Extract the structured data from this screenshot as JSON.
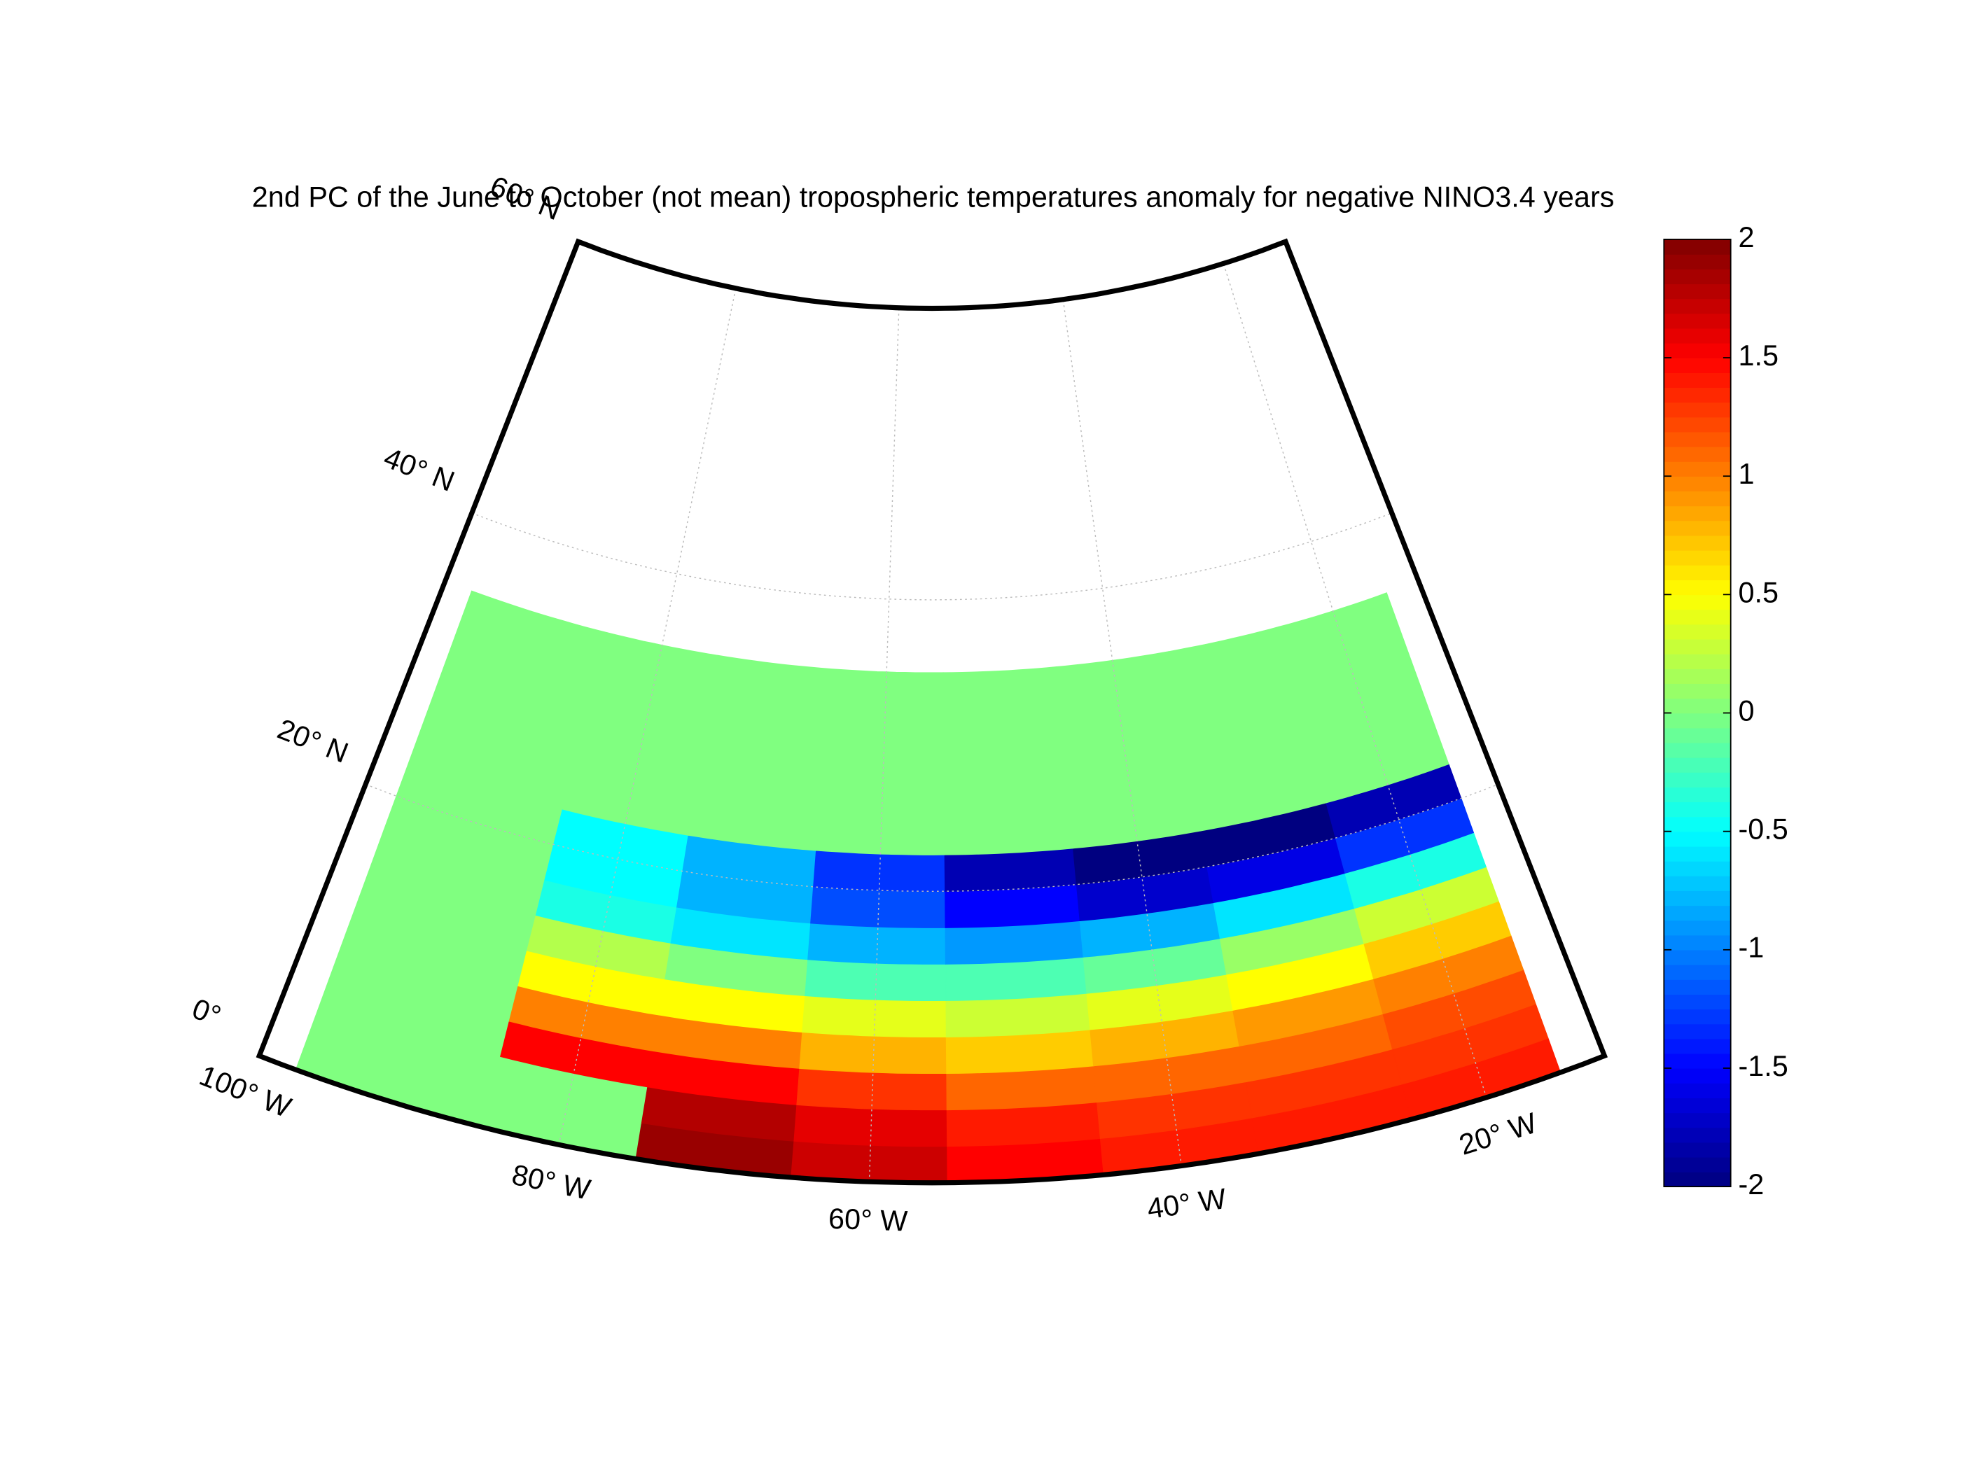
{
  "chart_data": {
    "type": "geo-heatmap",
    "title": "2nd PC of the June to October (not mean) tropospheric temperatures anomaly for negative NINO3.4 years",
    "latlim": [
      0,
      60
    ],
    "lonlim": [
      -100,
      -12
    ],
    "latticks": [
      {
        "value": 0,
        "label": "0°"
      },
      {
        "value": 20,
        "label": "20° N"
      },
      {
        "value": 40,
        "label": "40° N"
      },
      {
        "value": 60,
        "label": "60° N"
      }
    ],
    "lonticks": [
      {
        "value": -100,
        "label": "100° W"
      },
      {
        "value": -80,
        "label": "80° W"
      },
      {
        "value": -60,
        "label": "60° W"
      },
      {
        "value": -40,
        "label": "40° W"
      },
      {
        "value": -20,
        "label": "20° W"
      }
    ],
    "clim": [
      -2,
      2
    ],
    "cticks": [
      -2,
      -1.5,
      -1,
      -0.5,
      0,
      0.5,
      1,
      1.5,
      2
    ],
    "colormap": "jet",
    "field": {
      "lon_edges": [
        -97.5,
        -85,
        -75,
        -65,
        -55,
        -45,
        -35,
        -25,
        -15
      ],
      "lat_edges": [
        0,
        2.5,
        5,
        7.5,
        10,
        12.5,
        15,
        17.5,
        20,
        22.5,
        35
      ],
      "values": [
        [
          0,
          0,
          1.9,
          1.7,
          1.5,
          1.4,
          1.4,
          1.4
        ],
        [
          0,
          0,
          1.8,
          1.6,
          1.4,
          1.3,
          1.3,
          1.3
        ],
        [
          0,
          1.5,
          1.5,
          1.3,
          1.1,
          1.1,
          1.1,
          1.2
        ],
        [
          0,
          1,
          1,
          0.8,
          0.7,
          0.8,
          0.9,
          1
        ],
        [
          0,
          0.5,
          0.5,
          0.4,
          0.3,
          0.4,
          0.5,
          0.7
        ],
        [
          0,
          0.2,
          0,
          -0.2,
          -0.2,
          -0.1,
          0.1,
          0.3
        ],
        [
          0,
          -0.4,
          -0.6,
          -0.8,
          -0.9,
          -0.8,
          -0.6,
          -0.4
        ],
        [
          0,
          -0.5,
          -0.8,
          -1.2,
          -1.5,
          -1.7,
          -1.6,
          -1.3
        ],
        [
          0,
          -0.5,
          -0.8,
          -1.3,
          -1.8,
          -2,
          -2,
          -1.8
        ],
        [
          0,
          0,
          0,
          0,
          0,
          0,
          0,
          0
        ]
      ]
    }
  }
}
